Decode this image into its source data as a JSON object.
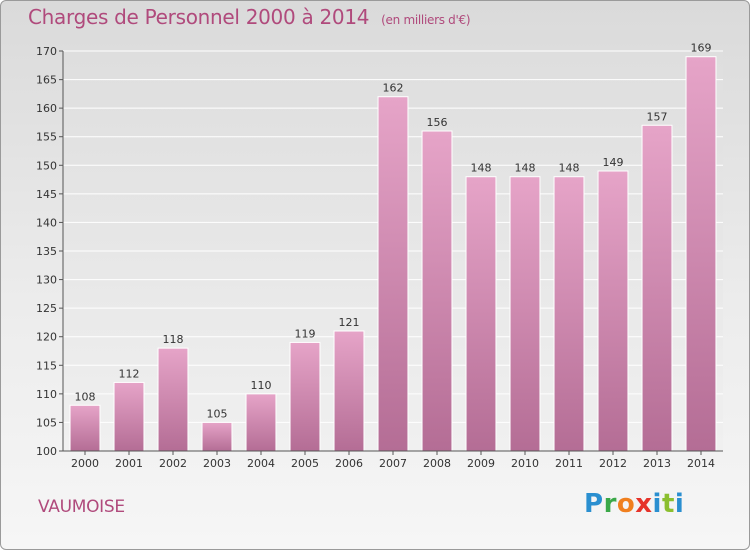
{
  "header": {
    "title": "Charges de Personnel 2000 à 2014",
    "subtitle": "(en milliers d'€)"
  },
  "footer": {
    "place": "VAUMOISE",
    "logo_letters": [
      "P",
      "r",
      "o",
      "x",
      "i",
      "t",
      "i"
    ],
    "logo_colors": [
      "#2a8fd0",
      "#3aa848",
      "#f07f1e",
      "#e6332a",
      "#2a8fd0",
      "#8bbf2f",
      "#2a8fd0"
    ]
  },
  "chart_data": {
    "type": "bar",
    "title": "Charges de Personnel 2000 à 2014",
    "subtitle": "(en milliers d'€)",
    "xlabel": "",
    "ylabel": "",
    "categories": [
      "2000",
      "2001",
      "2002",
      "2003",
      "2004",
      "2005",
      "2006",
      "2007",
      "2008",
      "2009",
      "2010",
      "2011",
      "2012",
      "2013",
      "2014"
    ],
    "values": [
      108,
      112,
      118,
      105,
      110,
      119,
      121,
      162,
      156,
      148,
      148,
      148,
      149,
      157,
      169
    ],
    "value_labels": [
      "108",
      "112",
      "118",
      "105",
      "110",
      "119",
      "121",
      "162",
      "156",
      "148",
      "148",
      "148",
      "149",
      "157",
      "169"
    ],
    "ylim": [
      100,
      170
    ],
    "yticks": [
      100,
      105,
      110,
      115,
      120,
      125,
      130,
      135,
      140,
      145,
      150,
      155,
      160,
      165,
      170
    ],
    "ytick_labels": [
      "100",
      "105",
      "110",
      "115",
      "120",
      "125",
      "130",
      "135",
      "140",
      "145",
      "150",
      "155",
      "160",
      "165",
      "170"
    ],
    "grid": true,
    "bar_color": "#d98ab6"
  }
}
